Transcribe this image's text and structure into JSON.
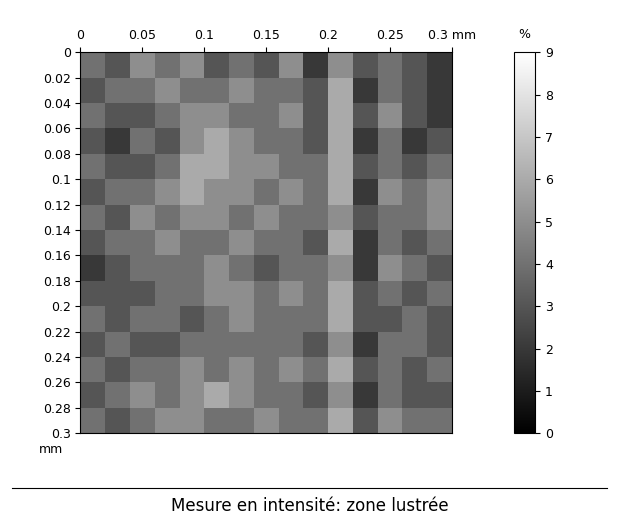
{
  "chart_data": {
    "type": "heatmap",
    "title": "Mesure en intensité: zone lustrée",
    "ylabel": "mm",
    "xlim": [
      0,
      0.3
    ],
    "xticks": [
      0,
      0.05,
      0.1,
      0.15,
      0.2,
      0.25,
      {
        "value": 0.3,
        "label": "0.3 mm"
      }
    ],
    "ylim": [
      0.3,
      0
    ],
    "yticks": [
      0,
      0.02,
      0.04,
      0.06,
      0.08,
      0.1,
      0.12,
      0.14,
      0.16,
      0.18,
      0.2,
      0.22,
      0.24,
      0.26,
      0.28,
      0.3
    ],
    "color": "gray",
    "cells": [
      [
        4,
        3,
        5,
        4,
        5,
        3,
        4,
        3,
        5,
        2,
        5,
        3,
        4,
        3,
        2
      ],
      [
        3,
        4,
        4,
        5,
        4,
        4,
        5,
        4,
        4,
        3,
        6,
        2,
        4,
        3,
        2
      ],
      [
        4,
        3,
        3,
        4,
        5,
        5,
        4,
        4,
        5,
        3,
        6,
        3,
        5,
        3,
        2
      ],
      [
        3,
        2,
        4,
        3,
        5,
        6,
        5,
        4,
        4,
        3,
        6,
        2,
        4,
        2,
        3
      ],
      [
        4,
        3,
        3,
        4,
        6,
        6,
        5,
        5,
        4,
        4,
        6,
        3,
        4,
        3,
        4
      ],
      [
        3,
        4,
        4,
        5,
        6,
        5,
        5,
        4,
        5,
        4,
        6,
        2,
        5,
        4,
        5
      ],
      [
        4,
        3,
        5,
        4,
        5,
        5,
        4,
        5,
        4,
        4,
        5,
        3,
        4,
        4,
        5
      ],
      [
        3,
        4,
        4,
        5,
        4,
        4,
        5,
        4,
        4,
        3,
        6,
        2,
        4,
        3,
        4
      ],
      [
        2,
        3,
        4,
        4,
        4,
        5,
        4,
        3,
        4,
        4,
        5,
        2,
        5,
        4,
        3
      ],
      [
        3,
        3,
        3,
        4,
        4,
        5,
        5,
        4,
        5,
        4,
        6,
        3,
        4,
        3,
        4
      ],
      [
        4,
        3,
        4,
        4,
        3,
        4,
        5,
        4,
        4,
        4,
        6,
        3,
        3,
        4,
        3
      ],
      [
        3,
        4,
        3,
        3,
        4,
        4,
        4,
        4,
        4,
        3,
        5,
        2,
        4,
        4,
        3
      ],
      [
        4,
        3,
        4,
        4,
        5,
        4,
        5,
        4,
        5,
        4,
        6,
        3,
        4,
        3,
        4
      ],
      [
        3,
        4,
        5,
        4,
        5,
        6,
        5,
        4,
        4,
        3,
        5,
        2,
        4,
        3,
        3
      ],
      [
        4,
        3,
        4,
        5,
        5,
        4,
        4,
        5,
        4,
        4,
        6,
        3,
        5,
        4,
        4
      ]
    ],
    "colorbar": {
      "range": [
        0,
        9
      ],
      "ticks": [
        0,
        1,
        2,
        3,
        4,
        5,
        6,
        7,
        8,
        9
      ],
      "label": "%"
    }
  }
}
